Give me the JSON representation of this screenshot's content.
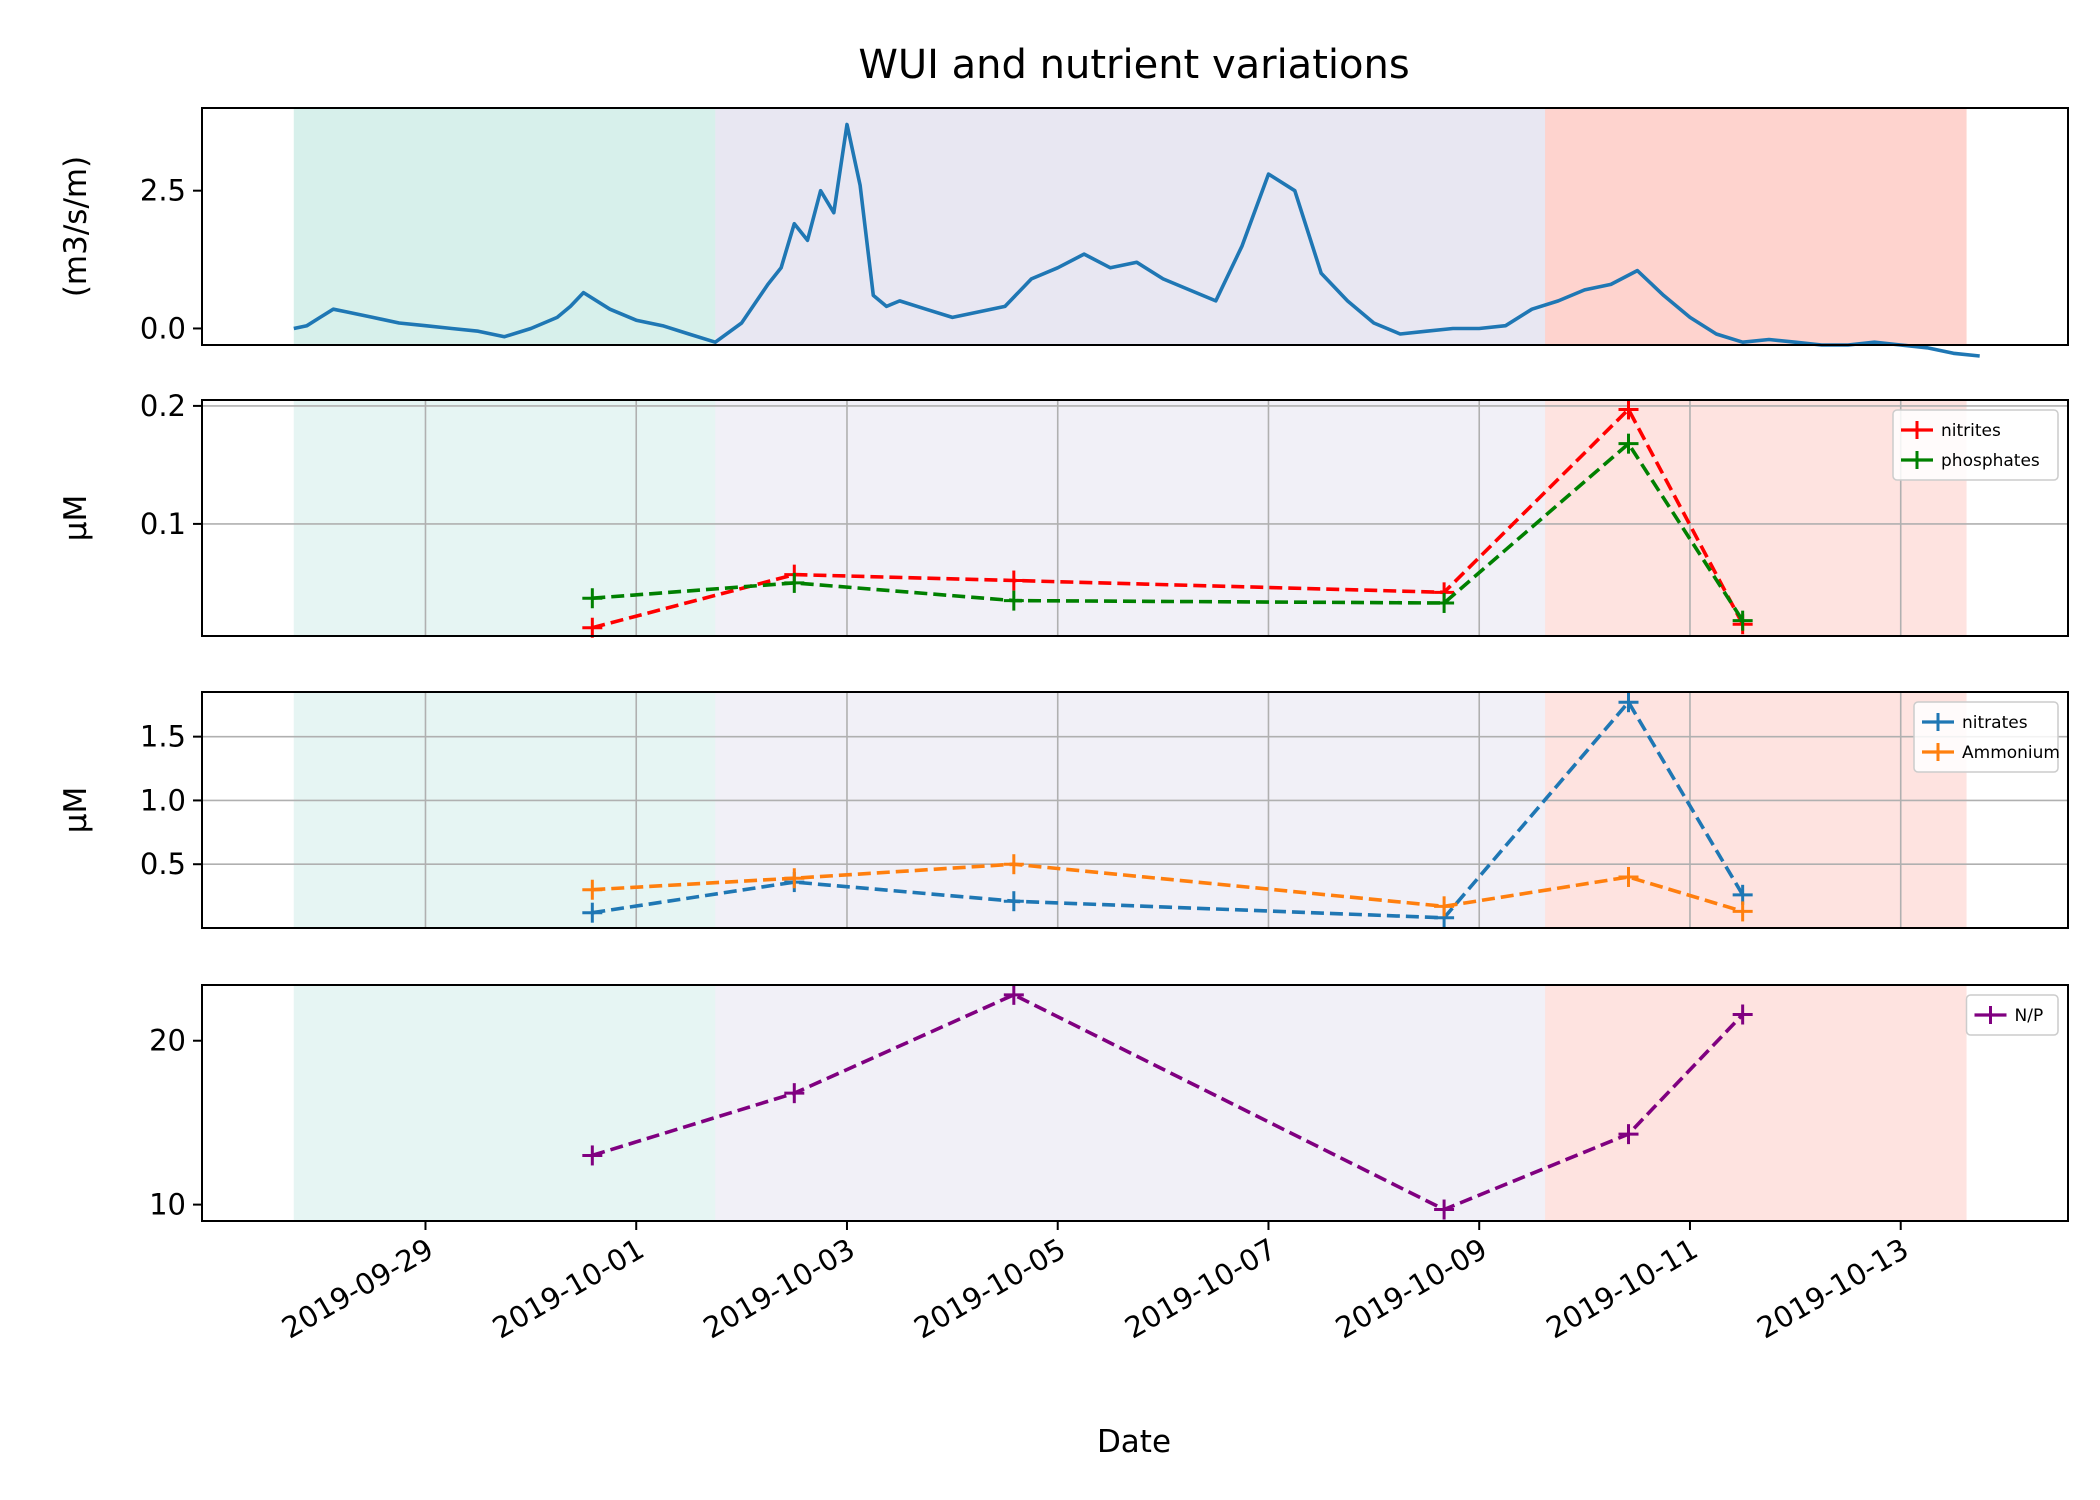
{
  "figure": {
    "title": "WUI and nutrient variations",
    "xlabel": "Date"
  },
  "chart_data": {
    "type": "line",
    "shared_x_ticks": [
      "2019-09-29",
      "2019-10-01",
      "2019-10-03",
      "2019-10-05",
      "2019-10-07",
      "2019-10-09",
      "2019-10-11",
      "2019-10-13"
    ],
    "shaded_periods": [
      {
        "start": "2019-09-27 18:00",
        "end": "2019-10-01 18:00",
        "color": "#8dd3c7"
      },
      {
        "start": "2019-10-01 18:00",
        "end": "2019-10-09 15:00",
        "color": "#bebada"
      },
      {
        "start": "2019-10-09 15:00",
        "end": "2019-10-13 15:00",
        "color": "#fb8072"
      }
    ],
    "panels": [
      {
        "ylabel": "(m3/s/m)",
        "ylim": [
          -0.3,
          4.0
        ],
        "yticks": [
          0.0,
          2.5
        ],
        "ytick_labels": [
          "0.0",
          "2.5"
        ],
        "grid": false,
        "legend": false,
        "series": [
          {
            "color": "#1f77b4",
            "linestyle": "solid",
            "x": [
              "2019-09-27 18:00",
              "2019-09-27 21:00",
              "2019-09-28 00:00",
              "2019-09-28 03:00",
              "2019-09-28 06:00",
              "2019-09-28 12:00",
              "2019-09-28 18:00",
              "2019-09-29 00:00",
              "2019-09-29 06:00",
              "2019-09-29 12:00",
              "2019-09-29 18:00",
              "2019-09-30 00:00",
              "2019-09-30 06:00",
              "2019-09-30 09:00",
              "2019-09-30 12:00",
              "2019-09-30 18:00",
              "2019-10-01 00:00",
              "2019-10-01 06:00",
              "2019-10-01 12:00",
              "2019-10-01 18:00",
              "2019-10-02 00:00",
              "2019-10-02 06:00",
              "2019-10-02 09:00",
              "2019-10-02 12:00",
              "2019-10-02 15:00",
              "2019-10-02 18:00",
              "2019-10-02 21:00",
              "2019-10-03 00:00",
              "2019-10-03 03:00",
              "2019-10-03 06:00",
              "2019-10-03 09:00",
              "2019-10-03 12:00",
              "2019-10-03 18:00",
              "2019-10-04 00:00",
              "2019-10-04 06:00",
              "2019-10-04 12:00",
              "2019-10-04 18:00",
              "2019-10-05 00:00",
              "2019-10-05 06:00",
              "2019-10-05 12:00",
              "2019-10-05 18:00",
              "2019-10-06 00:00",
              "2019-10-06 06:00",
              "2019-10-06 12:00",
              "2019-10-06 18:00",
              "2019-10-07 00:00",
              "2019-10-07 06:00",
              "2019-10-07 12:00",
              "2019-10-07 18:00",
              "2019-10-08 00:00",
              "2019-10-08 06:00",
              "2019-10-08 12:00",
              "2019-10-08 18:00",
              "2019-10-09 00:00",
              "2019-10-09 06:00",
              "2019-10-09 12:00",
              "2019-10-09 18:00",
              "2019-10-10 00:00",
              "2019-10-10 06:00",
              "2019-10-10 12:00",
              "2019-10-10 18:00",
              "2019-10-11 00:00",
              "2019-10-11 06:00",
              "2019-10-11 12:00",
              "2019-10-11 18:00",
              "2019-10-12 00:00",
              "2019-10-12 06:00",
              "2019-10-12 12:00",
              "2019-10-12 18:00",
              "2019-10-13 00:00",
              "2019-10-13 06:00",
              "2019-10-13 12:00",
              "2019-10-13 18:00"
            ],
            "y": [
              0.0,
              0.05,
              0.2,
              0.35,
              0.3,
              0.2,
              0.1,
              0.05,
              0.0,
              -0.05,
              -0.15,
              0.0,
              0.2,
              0.4,
              0.65,
              0.35,
              0.15,
              0.05,
              -0.1,
              -0.25,
              0.1,
              0.8,
              1.1,
              1.9,
              1.6,
              2.5,
              2.1,
              3.7,
              2.6,
              0.6,
              0.4,
              0.5,
              0.35,
              0.2,
              0.3,
              0.4,
              0.9,
              1.1,
              1.35,
              1.1,
              1.2,
              0.9,
              0.7,
              0.5,
              1.5,
              2.8,
              2.5,
              1.0,
              0.5,
              0.1,
              -0.1,
              -0.05,
              0.0,
              0.0,
              0.05,
              0.35,
              0.5,
              0.7,
              0.8,
              1.05,
              0.6,
              0.2,
              -0.1,
              -0.25,
              -0.2,
              -0.25,
              -0.3,
              -0.3,
              -0.25,
              -0.3,
              -0.35,
              -0.45,
              -0.5
            ]
          }
        ]
      },
      {
        "ylabel": "$\\mu$M",
        "ylim": [
          0.005,
          0.205
        ],
        "yticks": [
          0.1,
          0.2
        ],
        "ytick_labels": [
          "0.1",
          "0.2"
        ],
        "grid": true,
        "legend": "upper right",
        "series": [
          {
            "name": "nitrites",
            "color": "#ff0000",
            "linestyle": "dashed",
            "marker": "+",
            "x": [
              "2019-09-30 14:00",
              "2019-10-02 12:00",
              "2019-10-04 14:00",
              "2019-10-08 16:00",
              "2019-10-10 10:00",
              "2019-10-11 12:00"
            ],
            "y": [
              0.012,
              0.057,
              0.052,
              0.042,
              0.197,
              0.015
            ]
          },
          {
            "name": "phosphates",
            "color": "#008000",
            "linestyle": "dashed",
            "marker": "+",
            "x": [
              "2019-09-30 14:00",
              "2019-10-02 12:00",
              "2019-10-04 14:00",
              "2019-10-08 16:00",
              "2019-10-10 10:00",
              "2019-10-11 12:00"
            ],
            "y": [
              0.037,
              0.05,
              0.035,
              0.033,
              0.168,
              0.018
            ]
          }
        ]
      },
      {
        "ylabel": "$\\mu$M",
        "ylim": [
          0.0,
          1.85
        ],
        "yticks": [
          0.5,
          1.0,
          1.5
        ],
        "ytick_labels": [
          "0.5",
          "1.0",
          "1.5"
        ],
        "grid": true,
        "legend": "upper right",
        "series": [
          {
            "name": "nitrates",
            "color": "#1f77b4",
            "linestyle": "dashed",
            "marker": "+",
            "x": [
              "2019-09-30 14:00",
              "2019-10-02 12:00",
              "2019-10-04 14:00",
              "2019-10-08 16:00",
              "2019-10-10 10:00",
              "2019-10-11 12:00"
            ],
            "y": [
              0.12,
              0.36,
              0.21,
              0.08,
              1.77,
              0.26
            ]
          },
          {
            "name": "Ammonium",
            "color": "#ff7f0e",
            "linestyle": "dashed",
            "marker": "+",
            "x": [
              "2019-09-30 14:00",
              "2019-10-02 12:00",
              "2019-10-04 14:00",
              "2019-10-08 16:00",
              "2019-10-10 10:00",
              "2019-10-11 12:00"
            ],
            "y": [
              0.3,
              0.39,
              0.5,
              0.17,
              0.4,
              0.13
            ]
          }
        ]
      },
      {
        "ylabel": "",
        "ylim": [
          9.0,
          23.4
        ],
        "yticks": [
          10,
          20
        ],
        "ytick_labels": [
          "10",
          "20"
        ],
        "grid": false,
        "legend": "upper right",
        "series": [
          {
            "name": "N/P",
            "color": "#800080",
            "linestyle": "dashed",
            "marker": "+",
            "x": [
              "2019-09-30 14:00",
              "2019-10-02 12:00",
              "2019-10-04 14:00",
              "2019-10-08 16:00",
              "2019-10-10 10:00",
              "2019-10-11 12:00"
            ],
            "y": [
              13.0,
              16.8,
              22.8,
              9.7,
              14.3,
              21.6
            ]
          }
        ]
      }
    ]
  }
}
